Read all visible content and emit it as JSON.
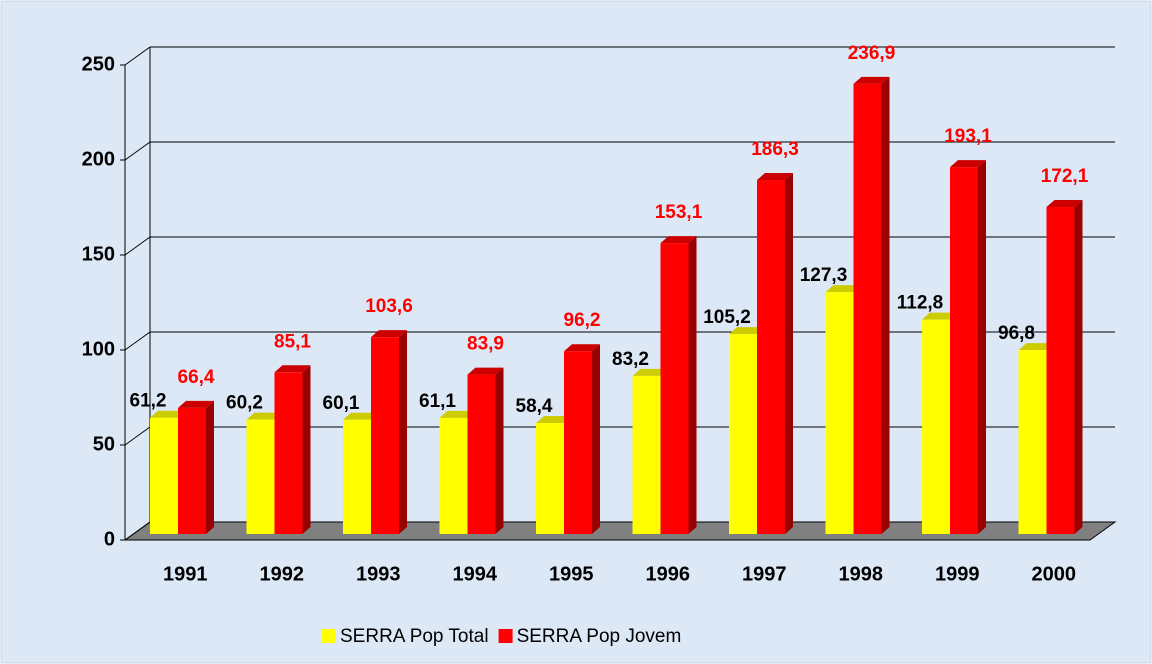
{
  "chart_data": {
    "type": "bar3d",
    "categories": [
      "1991",
      "1992",
      "1993",
      "1994",
      "1995",
      "1996",
      "1997",
      "1998",
      "1999",
      "2000"
    ],
    "series": [
      {
        "name": "SERRA Pop Total",
        "color": "#ffff00",
        "label_color": "#000000",
        "values": [
          61.2,
          60.2,
          60.1,
          61.1,
          58.4,
          83.2,
          105.2,
          127.3,
          112.8,
          96.8
        ],
        "value_labels": [
          "61,2",
          "60,2",
          "60,1",
          "61,1",
          "58,4",
          "83,2",
          "105,2",
          "127,3",
          "112,8",
          "96,8"
        ]
      },
      {
        "name": "SERRA Pop Jovem",
        "color": "#ff0000",
        "label_color": "#ff0000",
        "values": [
          66.4,
          85.1,
          103.6,
          83.9,
          96.2,
          153.1,
          186.3,
          236.9,
          193.1,
          172.1
        ],
        "value_labels": [
          "66,4",
          "85,1",
          "103,6",
          "83,9",
          "96,2",
          "153,1",
          "186,3",
          "236,9",
          "193,1",
          "172,1"
        ]
      }
    ],
    "ylim": [
      0,
      250
    ],
    "yticks": [
      0,
      50,
      100,
      150,
      200,
      250
    ],
    "grid": true,
    "legend": "bottom"
  }
}
